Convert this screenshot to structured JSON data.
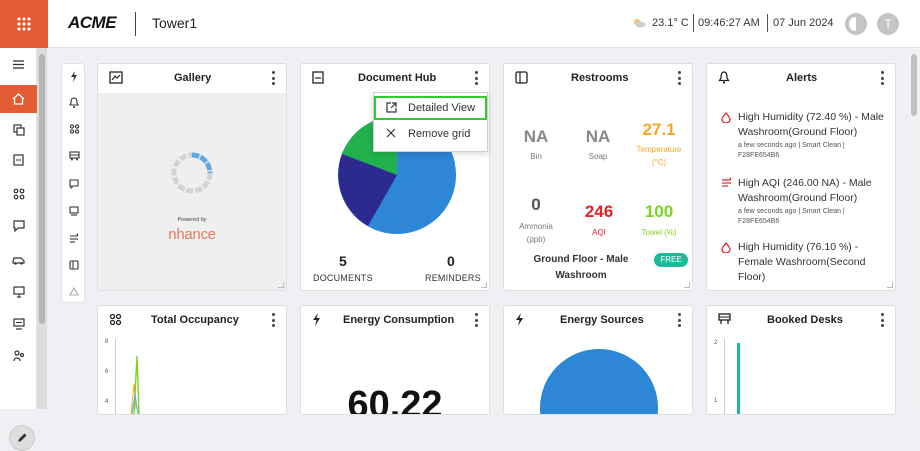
{
  "header": {
    "logo": "ACME",
    "site": "Tower1",
    "temperature": "23.1° C",
    "time": "09:46:27 AM",
    "date": "07 Jun 2024",
    "avatar_initial": "T"
  },
  "sidebar": {
    "items": [
      "menu-icon",
      "home-icon",
      "devices-icon",
      "document-icon",
      "occupancy-icon",
      "feedback-icon",
      "vehicle-icon",
      "monitor-icon",
      "kiosk-icon",
      "people-icon"
    ],
    "active": "home-icon"
  },
  "widget_strip": [
    "energy-icon",
    "alerts-icon",
    "occupancy-icon",
    "vehicle-icon",
    "feedback-icon",
    "kiosk-icon",
    "airflow-icon",
    "restroom-icon",
    "cleaning-icon"
  ],
  "gallery": {
    "title": "Gallery",
    "powered_by": "Powered by",
    "brand": "nhance"
  },
  "document_hub": {
    "title": "Document Hub",
    "documents_count": "5",
    "documents_label": "DOCUMENTS",
    "reminders_count": "0",
    "reminders_label": "REMINDERS",
    "menu": {
      "detailed_view": "Detailed View",
      "remove_grid": "Remove grid"
    }
  },
  "restrooms": {
    "title": "Restrooms",
    "bin_value": "NA",
    "bin_label": "Bin",
    "soap_value": "NA",
    "soap_label": "Soap",
    "temp_value": "27.1",
    "temp_label_1": "Temperature",
    "temp_label_2": "(°C)",
    "ammonia_value": "0",
    "ammonia_label_1": "Ammonia",
    "ammonia_label_2": "(ppb)",
    "aqi_value": "246",
    "aqi_label": "AQI",
    "towel_value": "100",
    "towel_label": "Towel (%)",
    "location_1": "Ground Floor - Male",
    "location_2": "Washroom",
    "status": "FREE"
  },
  "alerts": {
    "title": "Alerts",
    "items": [
      {
        "icon": "humidity-drop-icon",
        "line1": "High Humidity (72.40 %) - Male",
        "line2": "Washroom(Ground Floor)",
        "meta": "a few seconds ago | Smart Clean |",
        "id": "F28FE654B6"
      },
      {
        "icon": "aqi-wind-icon",
        "line1": "High AQI (246.00 NA) - Male",
        "line2": "Washroom(Ground Floor)",
        "meta": "a few seconds ago | Smart Clean |",
        "id": "F28FE654B6"
      },
      {
        "icon": "humidity-drop-icon",
        "line1": "High Humidity (76.10 %) -",
        "line2": "Female Washroom(Second",
        "line3": "Floor)"
      }
    ]
  },
  "total_occupancy": {
    "title": "Total Occupancy",
    "y_ticks": [
      "8",
      "6",
      "4"
    ]
  },
  "energy_consumption": {
    "title": "Energy Consumption",
    "value": "60.22"
  },
  "energy_sources": {
    "title": "Energy Sources"
  },
  "booked_desks": {
    "title": "Booked Desks",
    "y_ticks": [
      "2",
      "1"
    ]
  },
  "colors": {
    "accent": "#e25b33",
    "orange": "#f5a623",
    "red": "#e8202a",
    "green": "#7ed321",
    "teal": "#1abc9c",
    "highlight": "#2ecc2e"
  }
}
